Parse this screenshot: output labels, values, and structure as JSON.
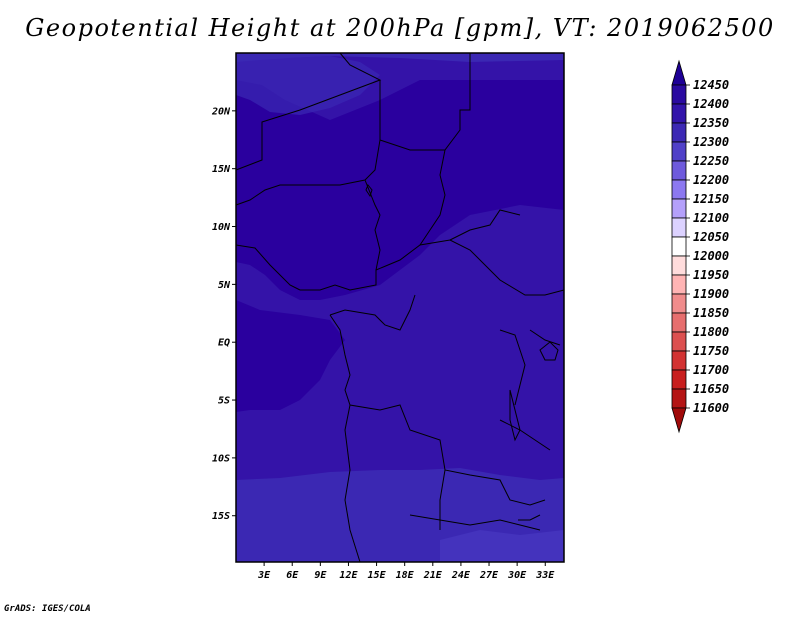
{
  "title": "Geopotential Height at 200hPa [gpm], VT: 2019062500",
  "credit": "GrADS: IGES/COLA",
  "map": {
    "lat_labels": [
      "20N",
      "15N",
      "10N",
      "5N",
      "EQ",
      "5S",
      "10S",
      "15S"
    ],
    "lon_labels": [
      "3E",
      "6E",
      "9E",
      "12E",
      "15E",
      "18E",
      "21E",
      "24E",
      "27E",
      "30E",
      "33E"
    ],
    "lon_range": [
      0,
      35
    ],
    "lat_range": [
      -19,
      25
    ],
    "field_colors": {
      "darkest": "#2a009e",
      "dark": "#3413a8",
      "medium": "#3b28b3",
      "light": "#4433bd"
    }
  },
  "colorbar": {
    "labels": [
      "12450",
      "12400",
      "12350",
      "12300",
      "12250",
      "12200",
      "12150",
      "12100",
      "12050",
      "12000",
      "11950",
      "11900",
      "11850",
      "11800",
      "11750",
      "11700",
      "11650",
      "11600"
    ],
    "colors": [
      "#1e0096",
      "#2a0aa0",
      "#3214aa",
      "#3c28b4",
      "#5040c8",
      "#6e5adc",
      "#8c78f0",
      "#b4a0fa",
      "#dcd2ff",
      "#ffffff",
      "#ffdcdc",
      "#ffb4b4",
      "#f08c8c",
      "#e66e6e",
      "#dc5050",
      "#d23232",
      "#c81e1e",
      "#b41414",
      "#a00a0a"
    ]
  }
}
